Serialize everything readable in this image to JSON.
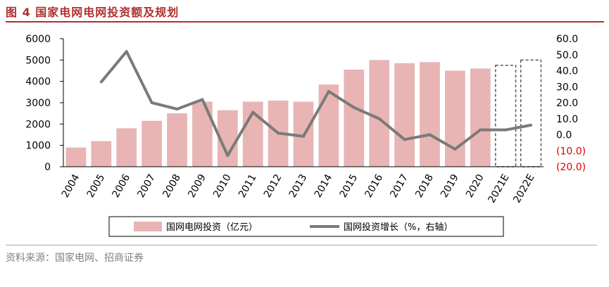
{
  "title": "图 4  国家电网电网投资额及规划",
  "source": "资料来源：国家电网、招商证券",
  "colors": {
    "bar": "#e8b4b4",
    "line": "#7a7a7a",
    "negative": "#e00000",
    "accent": "#b0302e"
  },
  "chart_data": {
    "type": "bar",
    "categories": [
      "2004",
      "2005",
      "2006",
      "2007",
      "2008",
      "2009",
      "2010",
      "2011",
      "2012",
      "2013",
      "2014",
      "2015",
      "2016",
      "2017",
      "2018",
      "2019",
      "2020",
      "2021E",
      "2022E"
    ],
    "series": [
      {
        "name": "国网电网投资（亿元）",
        "type": "bar",
        "axis": "left",
        "values": [
          900,
          1200,
          1800,
          2150,
          2500,
          3050,
          2650,
          3050,
          3100,
          3050,
          3850,
          4550,
          5000,
          4850,
          4900,
          4500,
          4600,
          4750,
          5000
        ],
        "estimated": [
          false,
          false,
          false,
          false,
          false,
          false,
          false,
          false,
          false,
          false,
          false,
          false,
          false,
          false,
          false,
          false,
          false,
          true,
          true
        ]
      },
      {
        "name": "国网投资增长（%，右轴）",
        "type": "line",
        "axis": "right",
        "values": [
          null,
          33,
          52,
          20,
          16,
          22,
          -13,
          14,
          1,
          -1,
          27,
          17,
          10,
          -3,
          0,
          -9,
          3,
          3,
          6
        ]
      }
    ],
    "left_axis": {
      "ylim": [
        0,
        6000
      ],
      "ticks": [
        "0",
        "1000",
        "2000",
        "3000",
        "4000",
        "5000",
        "6000"
      ]
    },
    "right_axis": {
      "ylim": [
        -20,
        60
      ],
      "ticks": [
        "(20.0)",
        "(10.0)",
        "0.0",
        "10.0",
        "20.0",
        "30.0",
        "40.0",
        "50.0",
        "60.0"
      ]
    },
    "legend_position": "bottom",
    "grid": false
  }
}
